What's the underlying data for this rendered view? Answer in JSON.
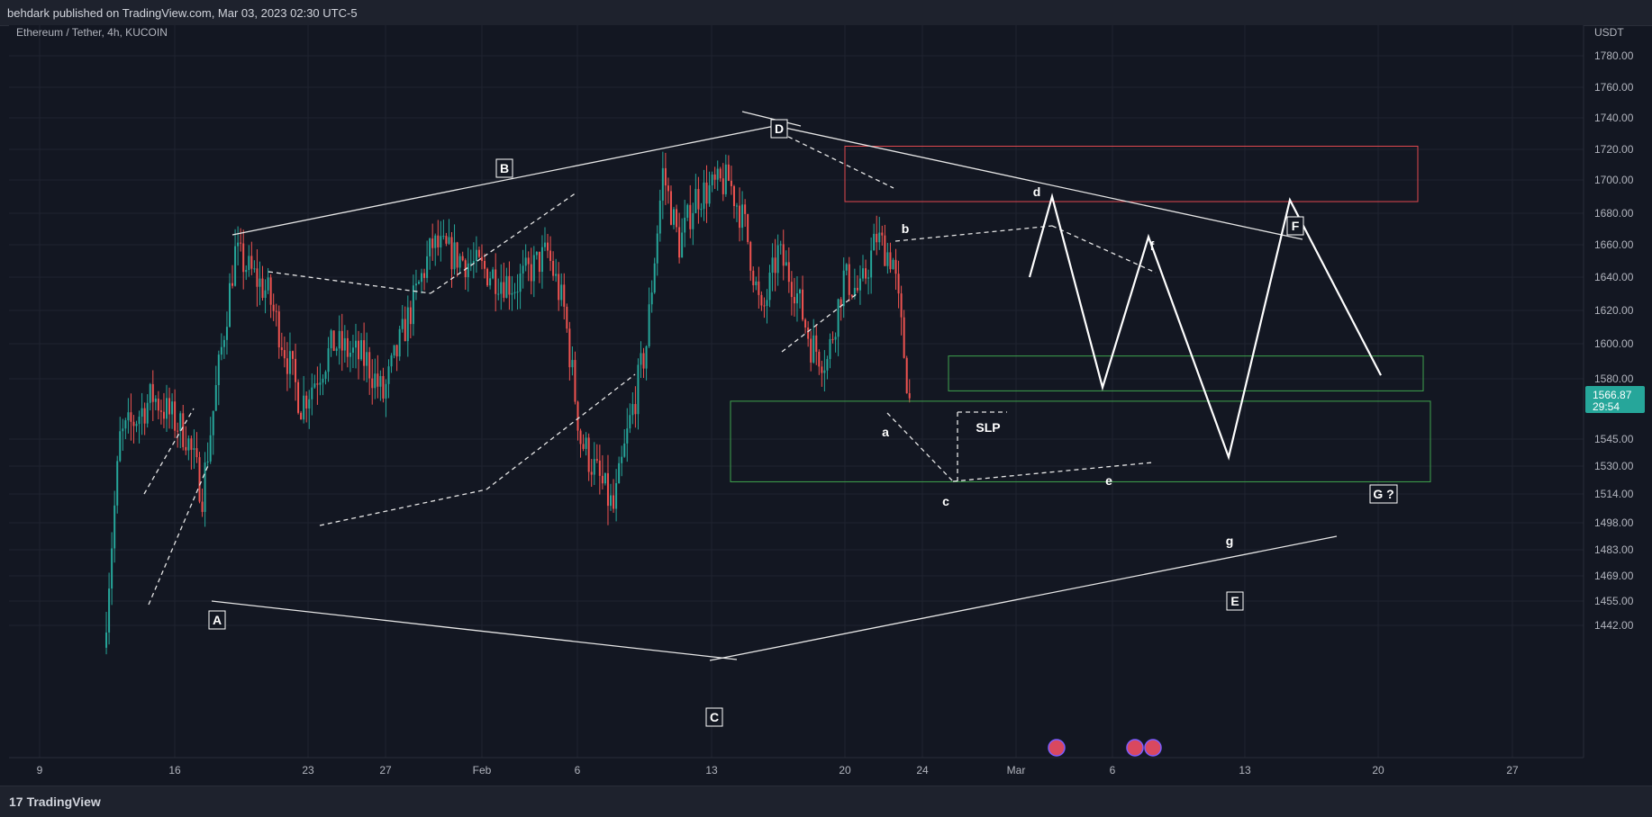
{
  "header": {
    "published": "behdark published on TradingView.com, Mar 03, 2023 02:30 UTC-5"
  },
  "footer": {
    "brand": "TradingView"
  },
  "chart_data": {
    "type": "candlestick",
    "title": "Ethereum / Tether, 4h, KUCOIN",
    "price_unit": "USDT",
    "last_price": "1566.87",
    "countdown": "29:54",
    "colors": {
      "up": "#26a69a",
      "down": "#ef5350",
      "background": "#131722",
      "price_tag": "#26a69a"
    },
    "y_ticks": [
      "1780.00",
      "1760.00",
      "1740.00",
      "1720.00",
      "1700.00",
      "1680.00",
      "1660.00",
      "1640.00",
      "1620.00",
      "1600.00",
      "1580.00",
      "1566.87",
      "1545.00",
      "1530.00",
      "1514.00",
      "1498.00",
      "1483.00",
      "1469.00",
      "1455.00",
      "1442.00"
    ],
    "x_ticks": [
      "9",
      "16",
      "23",
      "27",
      "Feb",
      "6",
      "13",
      "20",
      "24",
      "Mar",
      "6",
      "13",
      "20",
      "27"
    ],
    "anchors": [
      {
        "date": "2023-01-13",
        "close": 1430
      },
      {
        "date": "2023-01-14",
        "close": 1545
      },
      {
        "date": "2023-01-16",
        "close": 1570
      },
      {
        "date": "2023-01-18",
        "close": 1548
      },
      {
        "date": "2023-01-19",
        "close": 1515
      },
      {
        "date": "2023-01-21",
        "close": 1655
      },
      {
        "date": "2023-01-23",
        "close": 1630
      },
      {
        "date": "2023-01-25",
        "close": 1565
      },
      {
        "date": "2023-01-27",
        "close": 1600
      },
      {
        "date": "2023-01-29",
        "close": 1590
      },
      {
        "date": "2023-01-30",
        "close": 1570
      },
      {
        "date": "2023-02-02",
        "close": 1660
      },
      {
        "date": "2023-02-04",
        "close": 1650
      },
      {
        "date": "2023-02-07",
        "close": 1635
      },
      {
        "date": "2023-02-09",
        "close": 1655
      },
      {
        "date": "2023-02-10",
        "close": 1620
      },
      {
        "date": "2023-02-11",
        "close": 1545
      },
      {
        "date": "2023-02-13",
        "close": 1505
      },
      {
        "date": "2023-02-14",
        "close": 1555
      },
      {
        "date": "2023-02-15",
        "close": 1600
      },
      {
        "date": "2023-02-16",
        "close": 1705
      },
      {
        "date": "2023-02-17",
        "close": 1660
      },
      {
        "date": "2023-02-18",
        "close": 1690
      },
      {
        "date": "2023-02-20",
        "close": 1700
      },
      {
        "date": "2023-02-21",
        "close": 1672
      },
      {
        "date": "2023-02-22",
        "close": 1615
      },
      {
        "date": "2023-02-23",
        "close": 1655
      },
      {
        "date": "2023-02-24",
        "close": 1635
      },
      {
        "date": "2023-02-25",
        "close": 1600
      },
      {
        "date": "2023-02-26",
        "close": 1590
      },
      {
        "date": "2023-02-27",
        "close": 1640
      },
      {
        "date": "2023-02-28",
        "close": 1630
      },
      {
        "date": "2023-03-01",
        "close": 1665
      },
      {
        "date": "2023-03-02",
        "close": 1650
      },
      {
        "date": "2023-03-03",
        "close": 1567
      }
    ],
    "wave_labels": [
      "A",
      "B",
      "C",
      "D",
      "E",
      "F",
      "G ?"
    ],
    "subwave_labels": [
      "a",
      "b",
      "c",
      "d",
      "e",
      "f",
      "g"
    ],
    "annotations": [
      "SLP"
    ],
    "projection": [
      {
        "date": "2023-03-01",
        "price": 1640
      },
      {
        "date": "2023-03-04",
        "price": 1690
      },
      {
        "date": "2023-03-06",
        "price": 1575
      },
      {
        "date": "2023-03-08",
        "price": 1665
      },
      {
        "date": "2023-03-12",
        "price": 1535
      },
      {
        "date": "2023-03-16",
        "price": 1688
      },
      {
        "date": "2023-03-20",
        "price": 1582
      }
    ],
    "zones": [
      {
        "name": "resistance",
        "color": "#e0484f",
        "top": 1722,
        "bottom": 1687
      },
      {
        "name": "support-upper",
        "color": "#3fa34d",
        "top": 1593,
        "bottom": 1573
      },
      {
        "name": "support-lower",
        "color": "#3fa34d",
        "top": 1567,
        "bottom": 1521
      }
    ]
  }
}
